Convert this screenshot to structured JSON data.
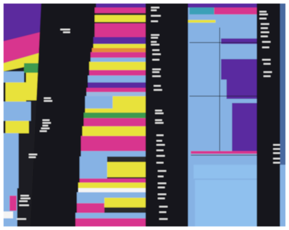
{
  "image": {
    "subject": "photo-of-printed-color-block-timeline",
    "palette": {
      "black": "#1a1a1c",
      "magenta": "#d8348e",
      "yellow": "#e8e23a",
      "light_blue": "#86b2e4",
      "sky_blue": "#8fc0ee",
      "purple": "#5a2aa0",
      "green": "#3c9a50",
      "white": "#f4f4f4",
      "orange": "#e48a3a",
      "dark_gray": "#2a2a2c"
    }
  }
}
